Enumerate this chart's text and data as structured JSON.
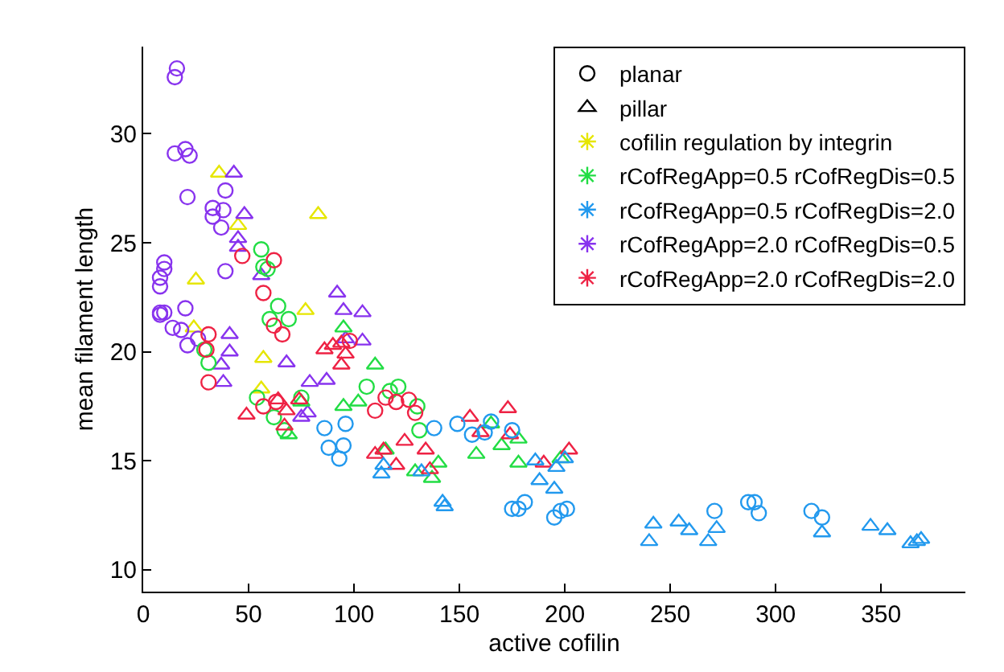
{
  "chart_data": {
    "type": "scatter",
    "xlabel": "active cofilin",
    "ylabel": "mean filament length",
    "xlim": [
      0,
      390
    ],
    "ylim": [
      9,
      34
    ],
    "xticks": [
      0,
      50,
      100,
      150,
      200,
      250,
      300,
      350
    ],
    "yticks": [
      10,
      15,
      20,
      25,
      30
    ],
    "legend": "top right",
    "series": [
      {
        "name": "planar",
        "color": "#000000",
        "marker": "circle"
      },
      {
        "name": "pillar",
        "color": "#000000",
        "marker": "triangle"
      },
      {
        "name": "cofilin regulation by integrin",
        "color": "#e6e600",
        "marker": "star"
      },
      {
        "name": "rCofRegApp=0.5 rCofRegDis=0.5",
        "color": "#22dd44",
        "marker": "star"
      },
      {
        "name": "rCofRegApp=0.5 rCofRegDis=2.0",
        "color": "#2299ee",
        "marker": "star"
      },
      {
        "name": "rCofRegApp=2.0 rCofRegDis=0.5",
        "color": "#8833ee",
        "marker": "star"
      },
      {
        "name": "rCofRegApp=2.0 rCofRegDis=2.0",
        "color": "#ee2244",
        "marker": "star"
      },
      {
        "color": "#e6e600",
        "marker": "triangle",
        "x": [
          36,
          83,
          45,
          25,
          77,
          24,
          57,
          56
        ],
        "values": [
          28.2,
          26.3,
          25.8,
          23.3,
          21.9,
          21.1,
          19.7,
          18.3
        ]
      },
      {
        "color": "#8833ee",
        "marker": "circle",
        "x": [
          16,
          15,
          15,
          20,
          22,
          21,
          39,
          33,
          38,
          33,
          37,
          39,
          10,
          10,
          8,
          8,
          8,
          10,
          20,
          8,
          14,
          18,
          21,
          26
        ],
        "values": [
          33.0,
          32.6,
          29.1,
          29.3,
          29.0,
          27.1,
          27.4,
          26.6,
          26.5,
          26.2,
          25.7,
          23.7,
          24.1,
          23.8,
          23.4,
          23.0,
          21.8,
          21.8,
          22.0,
          21.7,
          21.1,
          21.0,
          20.3,
          20.6
        ]
      },
      {
        "color": "#8833ee",
        "marker": "triangle",
        "x": [
          43,
          48,
          45,
          45,
          56,
          92,
          95,
          104,
          41,
          41,
          37,
          38,
          68,
          79,
          87,
          75,
          78,
          96,
          104
        ],
        "values": [
          28.2,
          26.3,
          25.2,
          24.8,
          23.5,
          22.7,
          21.9,
          21.8,
          20.8,
          20.0,
          19.4,
          18.6,
          19.5,
          18.6,
          18.7,
          17.0,
          17.2,
          20.6,
          20.5
        ]
      },
      {
        "color": "#22dd44",
        "marker": "circle",
        "x": [
          56,
          57,
          59,
          64,
          60,
          69,
          29,
          31,
          54,
          62,
          67,
          75,
          106,
          117,
          121,
          130,
          131
        ],
        "values": [
          24.7,
          23.9,
          23.8,
          22.1,
          21.5,
          21.5,
          20.1,
          19.5,
          17.9,
          17.0,
          16.4,
          17.9,
          18.4,
          18.2,
          18.4,
          17.5,
          16.4
        ]
      },
      {
        "color": "#22dd44",
        "marker": "triangle",
        "x": [
          69,
          75,
          95,
          110,
          95,
          102,
          115,
          129,
          140,
          137,
          165,
          158,
          170,
          178,
          178,
          198
        ],
        "values": [
          16.2,
          17.7,
          21.1,
          19.4,
          17.5,
          17.7,
          15.5,
          14.5,
          14.9,
          14.2,
          16.7,
          15.3,
          15.7,
          16.0,
          14.9,
          15.1
        ]
      },
      {
        "color": "#ee2244",
        "marker": "circle",
        "x": [
          47,
          62,
          57,
          31,
          31,
          30,
          57,
          63,
          62,
          66,
          115,
          120,
          126,
          129,
          110,
          98
        ],
        "values": [
          24.4,
          24.2,
          22.7,
          20.8,
          18.6,
          20.1,
          17.5,
          17.7,
          21.2,
          20.8,
          17.9,
          17.7,
          17.8,
          17.2,
          17.3,
          20.5
        ]
      },
      {
        "color": "#ee2244",
        "marker": "triangle",
        "x": [
          49,
          64,
          68,
          74,
          67,
          86,
          90,
          94,
          94,
          96,
          124,
          110,
          114,
          120,
          134,
          136,
          155,
          160,
          173,
          174,
          190,
          202
        ],
        "values": [
          17.1,
          17.8,
          17.3,
          17.8,
          16.6,
          20.1,
          20.3,
          20.4,
          19.4,
          19.9,
          15.9,
          15.3,
          15.5,
          14.8,
          15.5,
          14.6,
          17.0,
          16.3,
          17.4,
          16.2,
          14.9,
          15.5
        ]
      },
      {
        "color": "#2299ee",
        "marker": "circle",
        "x": [
          86,
          96,
          88,
          95,
          93,
          138,
          149,
          156,
          162,
          165,
          175,
          175,
          178,
          181,
          195,
          198,
          201,
          271,
          287,
          290,
          292,
          317,
          322
        ],
        "values": [
          16.5,
          16.7,
          15.6,
          15.7,
          15.1,
          16.5,
          16.7,
          16.2,
          16.3,
          16.8,
          16.4,
          12.8,
          12.8,
          13.1,
          12.4,
          12.7,
          12.8,
          12.7,
          13.1,
          13.1,
          12.6,
          12.7,
          12.4
        ]
      },
      {
        "color": "#2299ee",
        "marker": "triangle",
        "x": [
          113,
          114,
          132,
          142,
          143,
          186,
          196,
          200,
          188,
          195,
          242,
          240,
          254,
          259,
          268,
          272,
          322,
          345,
          353,
          364,
          367,
          369
        ],
        "values": [
          14.4,
          14.8,
          14.5,
          13.1,
          12.9,
          15.0,
          14.7,
          15.1,
          14.1,
          13.7,
          12.1,
          11.3,
          12.2,
          11.8,
          11.3,
          11.9,
          11.7,
          12.0,
          11.8,
          11.2,
          11.3,
          11.4
        ]
      }
    ]
  }
}
